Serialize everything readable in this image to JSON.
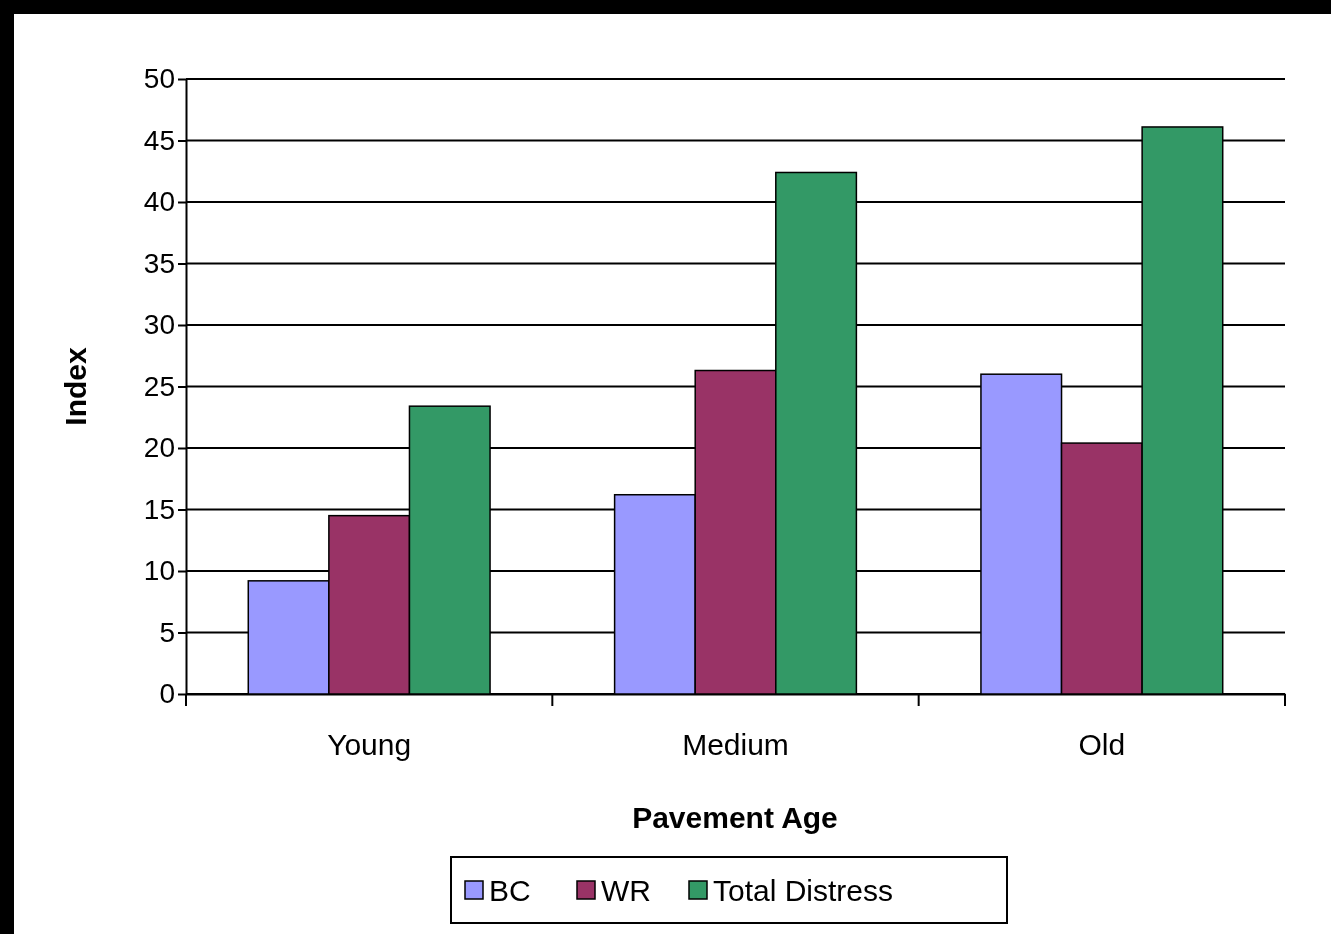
{
  "chart_data": {
    "type": "bar",
    "xlabel": "Pavement Age",
    "ylabel": "Index",
    "categories": [
      "Young",
      "Medium",
      "Old"
    ],
    "series": [
      {
        "name": "BC",
        "color": "#9999ff",
        "values": [
          9.2,
          16.2,
          26.0
        ]
      },
      {
        "name": "WR",
        "color": "#993366",
        "values": [
          14.5,
          26.3,
          20.4
        ]
      },
      {
        "name": "Total Distress",
        "color": "#339966",
        "values": [
          23.4,
          42.4,
          46.1
        ]
      }
    ],
    "ylim": [
      0,
      50
    ],
    "yticks": [
      0,
      5,
      10,
      15,
      20,
      25,
      30,
      35,
      40,
      45,
      50
    ],
    "grid": "y",
    "legend": "bottom"
  }
}
